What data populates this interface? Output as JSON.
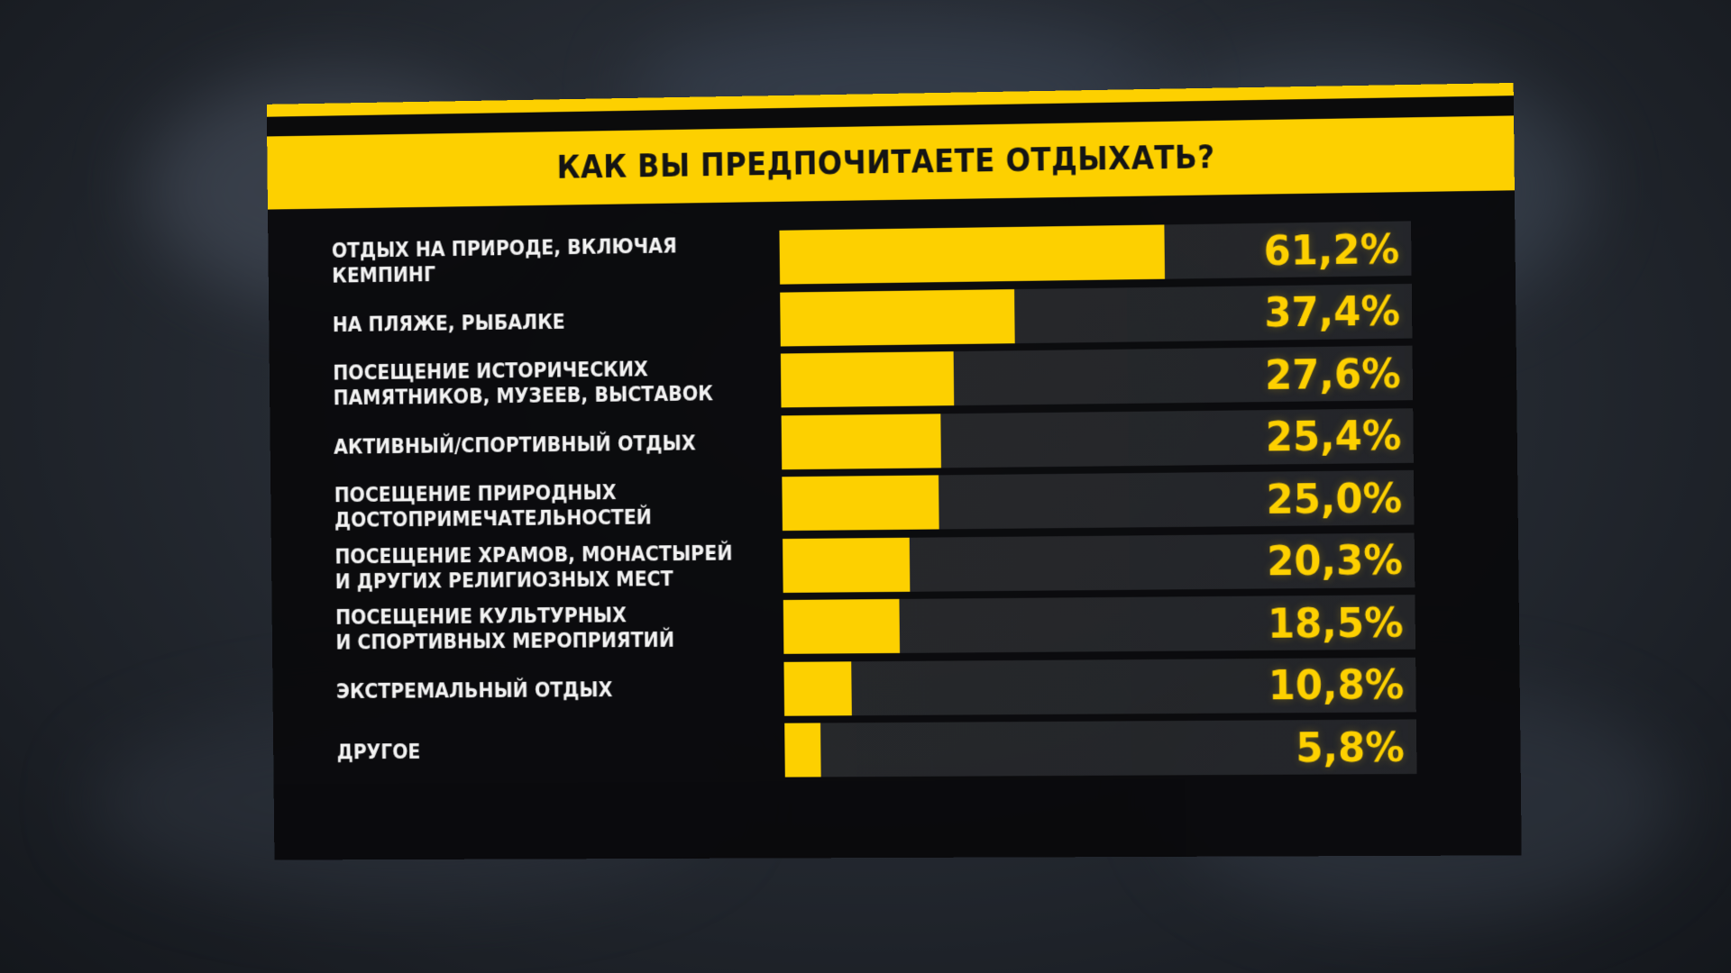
{
  "colors": {
    "accent": "#fdd000",
    "panel": "#0b0b0c",
    "text": "#f2f2f2"
  },
  "chart_data": {
    "type": "bar",
    "orientation": "horizontal",
    "title": "КАК ВЫ ПРЕДПОЧИТАЕТЕ ОТДЫХАТЬ?",
    "xlim": [
      0,
      100
    ],
    "grid": false,
    "categories": [
      "ОТДЫХ НА ПРИРОДЕ, ВКЛЮЧАЯ КЕМПИНГ",
      "НА ПЛЯЖЕ, РЫБАЛКЕ",
      "ПОСЕЩЕНИЕ ИСТОРИЧЕСКИХ\nПАМЯТНИКОВ, МУЗЕЕВ, ВЫСТАВОК",
      "АКТИВНЫЙ/СПОРТИВНЫЙ ОТДЫХ",
      "ПОСЕЩЕНИЕ ПРИРОДНЫХ\nДОСТОПРИМЕЧАТЕЛЬНОСТЕЙ",
      "ПОСЕЩЕНИЕ ХРАМОВ, МОНАСТЫРЕЙ\nИ ДРУГИХ РЕЛИГИОЗНЫХ МЕСТ",
      "ПОСЕЩЕНИЕ КУЛЬТУРНЫХ\nИ СПОРТИВНЫХ МЕРОПРИЯТИЙ",
      "ЭКСТРЕМАЛЬНЫЙ ОТДЫХ",
      "ДРУГОЕ"
    ],
    "values": [
      61.2,
      37.4,
      27.6,
      25.4,
      25.0,
      20.3,
      18.5,
      10.8,
      5.8
    ],
    "value_labels": [
      "61,2%",
      "37,4%",
      "27,6%",
      "25,4%",
      "25,0%",
      "20,3%",
      "18,5%",
      "10,8%",
      "5,8%"
    ]
  }
}
